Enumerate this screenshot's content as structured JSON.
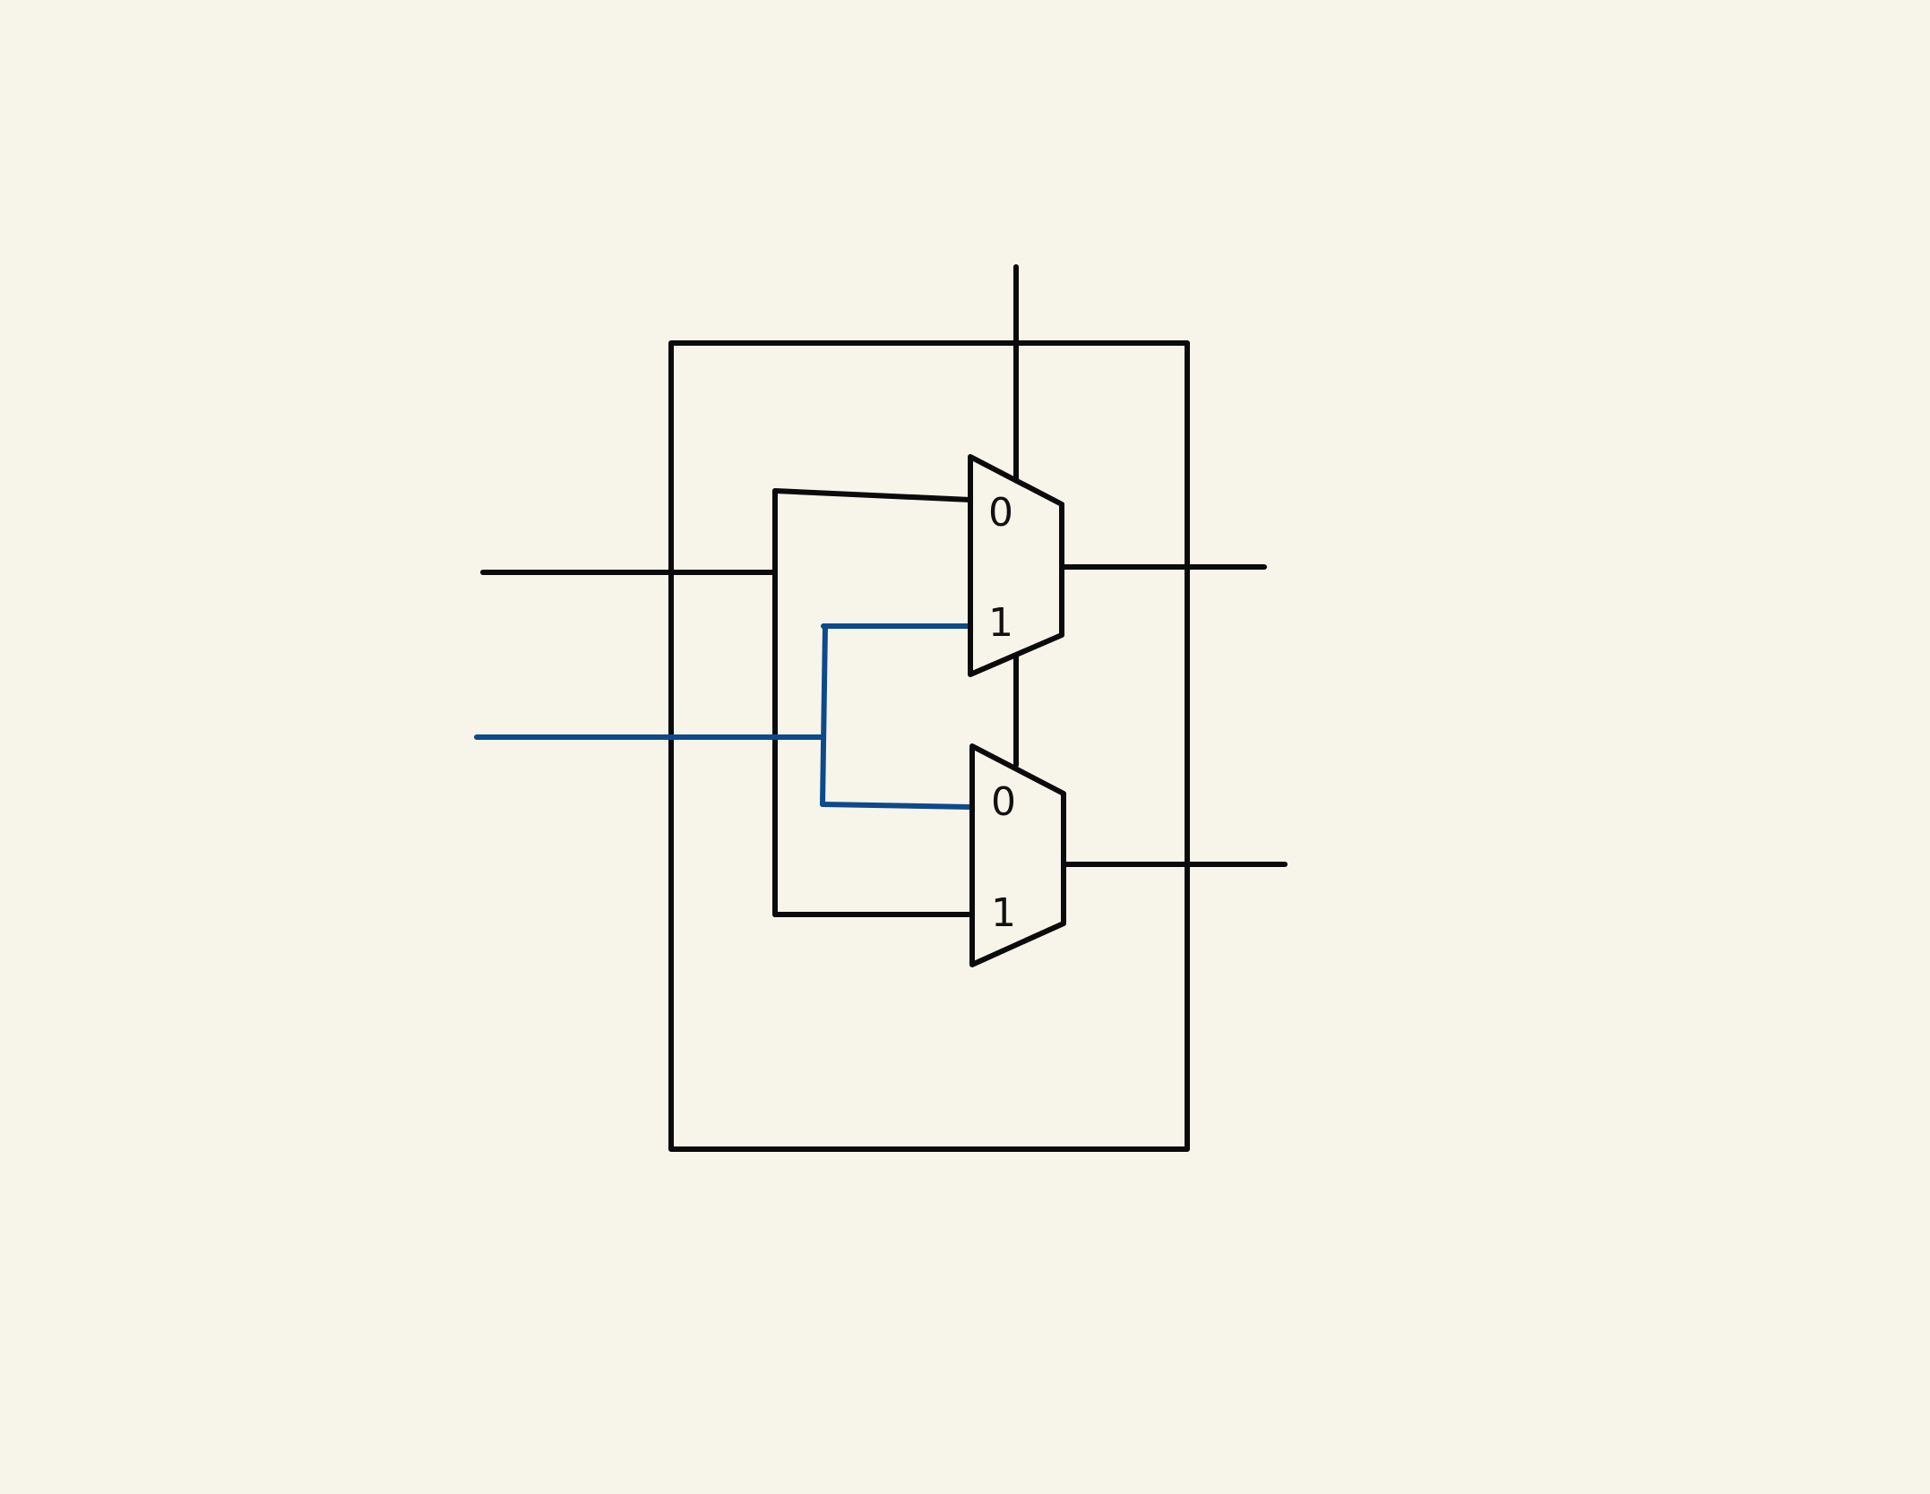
{
  "mux_top": {
    "input_0_label": "0",
    "input_1_label": "1"
  },
  "mux_bottom": {
    "input_0_label": "0",
    "input_1_label": "1"
  },
  "colors": {
    "background": "#f7f5e9",
    "wire": "#0b0b0b",
    "highlight_wire": "#0d4a8c"
  }
}
